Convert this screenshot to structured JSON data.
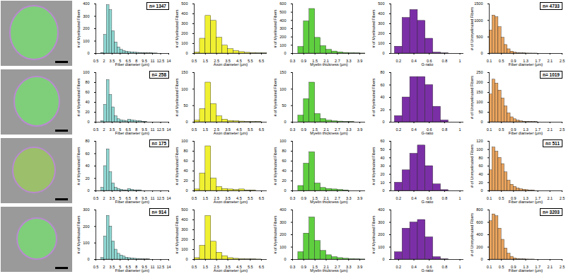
{
  "chart_data": [
    {
      "type": "histogram",
      "x_label": "Fiber diameter (µm)",
      "y_label": "# of Myelinated Fibers",
      "color": "#8fd8d3",
      "annotation": "n= 1347",
      "bins": [
        0.5,
        1,
        1.5,
        2,
        2.5,
        3,
        3.5,
        4,
        4.5,
        5,
        5.5,
        6,
        6.5,
        7,
        7.5,
        8,
        8.5,
        9,
        9.5,
        10,
        10.5,
        11,
        11.5,
        12,
        12.5,
        13,
        13.5,
        14
      ],
      "values": [
        0,
        0,
        5,
        150,
        390,
        350,
        180,
        90,
        50,
        30,
        20,
        15,
        12,
        10,
        8,
        6,
        5,
        4,
        3,
        2,
        2,
        1,
        1,
        0,
        0,
        0,
        0
      ],
      "xlim": [
        0.5,
        14
      ],
      "xticks": [
        0.5,
        2,
        3.5,
        5,
        6.5,
        8,
        9.5,
        11,
        12.5,
        14
      ],
      "ylim": [
        0,
        400
      ],
      "yticks": [
        0,
        100,
        200,
        300,
        400
      ]
    },
    {
      "type": "histogram",
      "x_label": "Axon diameter (µm)",
      "y_label": "# of Myelinated Fibers",
      "color": "#f0f032",
      "bins": [
        0.5,
        1,
        1.5,
        2,
        2.5,
        3,
        3.5,
        4,
        4.5,
        5,
        5.5,
        6,
        6.5,
        7
      ],
      "values": [
        10,
        150,
        380,
        330,
        160,
        80,
        45,
        25,
        15,
        8,
        5,
        3,
        2
      ],
      "xlim": [
        0.5,
        7
      ],
      "xticks": [
        0.5,
        1.5,
        2.5,
        3.5,
        4.5,
        5.5,
        6.5
      ],
      "ylim": [
        0,
        500
      ],
      "yticks": [
        0,
        100,
        200,
        300,
        400,
        500
      ]
    },
    {
      "type": "histogram",
      "x_label": "Myelin thickness (µm)",
      "y_label": "# of Myelinated Fibers",
      "color": "#5fcf3f",
      "bins": [
        0.3,
        0.6,
        0.9,
        1.2,
        1.5,
        1.8,
        2.1,
        2.4,
        2.7,
        3.0,
        3.3,
        3.6,
        3.9,
        4.2
      ],
      "values": [
        0,
        80,
        390,
        540,
        190,
        90,
        45,
        25,
        15,
        8,
        5,
        3,
        1
      ],
      "xlim": [
        0.3,
        4.2
      ],
      "xticks": [
        0.3,
        0.9,
        1.5,
        2.1,
        2.7,
        3.3,
        3.9
      ],
      "ylim": [
        0,
        600
      ],
      "yticks": [
        0,
        100,
        200,
        300,
        400,
        500,
        600
      ]
    },
    {
      "type": "histogram",
      "x_label": "G-ratio",
      "y_label": "# of Myelinated Fibers",
      "color": "#7b2fa6",
      "bins": [
        0.15,
        0.25,
        0.35,
        0.45,
        0.55,
        0.65,
        0.75,
        0.85,
        0.95
      ],
      "values": [
        70,
        360,
        440,
        330,
        150,
        10,
        2,
        0
      ],
      "xlim": [
        0.1,
        1.05
      ],
      "xticks": [
        0.2,
        0.4,
        0.6,
        0.8,
        1
      ],
      "ylim": [
        0,
        500
      ],
      "yticks": [
        0,
        100,
        200,
        300,
        400,
        500
      ]
    },
    {
      "type": "histogram",
      "x_label": "Fiber diameter (µm)",
      "y_label": "# of Unmyelinated Fibers",
      "color": "#e9a35c",
      "annotation": "n= 4733",
      "bins": [
        0.1,
        0.2,
        0.3,
        0.4,
        0.5,
        0.6,
        0.7,
        0.8,
        0.9,
        1.0,
        1.1,
        1.2,
        1.3,
        1.4,
        1.5,
        1.6,
        1.7,
        1.8,
        1.9,
        2.0,
        2.1,
        2.2,
        2.3,
        2.4,
        2.5
      ],
      "values": [
        700,
        1150,
        1100,
        800,
        480,
        260,
        130,
        60,
        30,
        15,
        8,
        5,
        3,
        2,
        1,
        1,
        0,
        0,
        0,
        0,
        0,
        0,
        0,
        0
      ],
      "xlim": [
        0.1,
        2.5
      ],
      "xticks": [
        0.1,
        0.5,
        0.9,
        1.3,
        1.7,
        2.1,
        2.5
      ],
      "ylim": [
        0,
        1500
      ],
      "yticks": [
        0,
        500,
        1000,
        1500
      ]
    },
    {
      "type": "histogram",
      "x_label": "Fiber diameter (µm)",
      "y_label": "# of Myelinated Fibers",
      "color": "#8fd8d3",
      "annotation": "n= 258",
      "bins": [
        0.5,
        1,
        1.5,
        2,
        2.5,
        3,
        3.5,
        4,
        4.5,
        5,
        5.5,
        6,
        6.5,
        7,
        7.5,
        8,
        8.5,
        9,
        9.5,
        10,
        10.5,
        11,
        11.5,
        12,
        12.5,
        13,
        13.5,
        14
      ],
      "values": [
        0,
        0,
        2,
        35,
        85,
        55,
        30,
        12,
        6,
        4,
        3,
        2,
        5,
        4,
        3,
        2,
        2,
        1,
        1,
        0,
        0,
        0,
        0,
        0,
        0,
        0,
        0
      ],
      "xlim": [
        0.5,
        14
      ],
      "xticks": [
        0.5,
        2,
        3.5,
        5,
        6.5,
        8,
        9.5,
        11,
        12.5,
        14
      ],
      "ylim": [
        0,
        100
      ],
      "yticks": [
        0,
        20,
        40,
        60,
        80,
        100
      ]
    },
    {
      "type": "histogram",
      "x_label": "Axon diameter (µm)",
      "y_label": "# of Myelinated Fibers",
      "color": "#f0f032",
      "bins": [
        0.5,
        1,
        1.5,
        2,
        2.5,
        3,
        3.5,
        4,
        4.5,
        5,
        5.5,
        6,
        6.5,
        7
      ],
      "values": [
        5,
        40,
        120,
        55,
        18,
        8,
        4,
        3,
        2,
        1,
        1,
        1,
        0
      ],
      "xlim": [
        0.5,
        7
      ],
      "xticks": [
        0.5,
        1.5,
        2.5,
        3.5,
        4.5,
        5.5,
        6.5
      ],
      "ylim": [
        0,
        150
      ],
      "yticks": [
        0,
        50,
        100,
        150
      ]
    },
    {
      "type": "histogram",
      "x_label": "Myelin thickness (µm)",
      "y_label": "# of Myelinated Fibers",
      "color": "#5fcf3f",
      "bins": [
        0.3,
        0.6,
        0.9,
        1.2,
        1.5,
        1.8,
        2.1,
        2.4,
        2.7,
        3.0,
        3.3,
        3.6,
        3.9,
        4.2
      ],
      "values": [
        0,
        20,
        70,
        120,
        25,
        10,
        5,
        3,
        2,
        1,
        1,
        0,
        0
      ],
      "xlim": [
        0.3,
        4.2
      ],
      "xticks": [
        0.3,
        0.9,
        1.5,
        2.1,
        2.7,
        3.3,
        3.9
      ],
      "ylim": [
        0,
        150
      ],
      "yticks": [
        0,
        50,
        100,
        150
      ]
    },
    {
      "type": "histogram",
      "x_label": "G-ratio",
      "y_label": "# of Myelinated Fibers",
      "color": "#7b2fa6",
      "bins": [
        0.15,
        0.25,
        0.35,
        0.45,
        0.55,
        0.65,
        0.75,
        0.85,
        0.95
      ],
      "values": [
        10,
        40,
        73,
        73,
        60,
        25,
        3,
        0
      ],
      "xlim": [
        0.1,
        1.05
      ],
      "xticks": [
        0.2,
        0.4,
        0.6,
        0.8,
        1
      ],
      "ylim": [
        0,
        80
      ],
      "yticks": [
        0,
        20,
        40,
        60,
        80
      ]
    },
    {
      "type": "histogram",
      "x_label": "Fiber diameter (µm)",
      "y_label": "# of Unmyelinated Fibers",
      "color": "#e9a35c",
      "annotation": "n= 1019",
      "bins": [
        0.1,
        0.2,
        0.3,
        0.4,
        0.5,
        0.6,
        0.7,
        0.8,
        0.9,
        1.0,
        1.1,
        1.2,
        1.3,
        1.4,
        1.5,
        1.6,
        1.7,
        1.8,
        1.9,
        2.0,
        2.1,
        2.2,
        2.3,
        2.4,
        2.5
      ],
      "values": [
        140,
        215,
        195,
        160,
        120,
        80,
        45,
        25,
        15,
        8,
        5,
        3,
        2,
        2,
        1,
        1,
        0,
        0,
        0,
        0,
        0,
        0,
        0,
        0
      ],
      "xlim": [
        0.1,
        2.5
      ],
      "xticks": [
        0.1,
        0.5,
        0.9,
        1.3,
        1.7,
        2.1,
        2.5
      ],
      "ylim": [
        0,
        250
      ],
      "yticks": [
        0,
        50,
        100,
        150,
        200,
        250
      ]
    },
    {
      "type": "histogram",
      "x_label": "Fiber diameter (µm)",
      "y_label": "# of Myelinated Fibers",
      "color": "#8fd8d3",
      "annotation": "n= 175",
      "bins": [
        0.5,
        1,
        1.5,
        2,
        2.5,
        3,
        3.5,
        4,
        4.5,
        5,
        5.5,
        6,
        6.5,
        7,
        7.5,
        8,
        8.5,
        9,
        9.5,
        10,
        10.5,
        11,
        11.5,
        12,
        12.5,
        13,
        13.5,
        14
      ],
      "values": [
        0,
        0,
        5,
        40,
        67,
        30,
        12,
        5,
        3,
        2,
        1,
        1,
        3,
        2,
        1,
        1,
        1,
        0,
        0,
        0,
        0,
        0,
        0,
        0,
        0,
        0,
        0
      ],
      "xlim": [
        0.5,
        14
      ],
      "xticks": [
        0.5,
        2,
        3.5,
        5,
        6.5,
        8,
        9.5,
        11,
        12.5,
        14
      ],
      "ylim": [
        0,
        80
      ],
      "yticks": [
        0,
        20,
        40,
        60,
        80
      ]
    },
    {
      "type": "histogram",
      "x_label": "Axon diameter (µm)",
      "y_label": "# of Myelinated Fibers",
      "color": "#f0f032",
      "bins": [
        0.5,
        1,
        1.5,
        2,
        2.5,
        3,
        3.5,
        4,
        4.5,
        5,
        5.5,
        6,
        6.5,
        7
      ],
      "values": [
        3,
        35,
        90,
        25,
        8,
        4,
        3,
        2,
        3,
        1,
        1,
        0,
        0
      ],
      "xlim": [
        0.5,
        7
      ],
      "xticks": [
        0.5,
        1.5,
        2.5,
        3.5,
        4.5,
        5.5,
        6.5
      ],
      "ylim": [
        0,
        100
      ],
      "yticks": [
        0,
        20,
        40,
        60,
        80,
        100
      ]
    },
    {
      "type": "histogram",
      "x_label": "Myelin thickness (µm)",
      "y_label": "# of Myelinated Fibers",
      "color": "#5fcf3f",
      "bins": [
        0.3,
        0.6,
        0.9,
        1.2,
        1.5,
        1.8,
        2.1,
        2.4,
        2.7,
        3.0,
        3.3,
        3.6,
        3.9,
        4.2
      ],
      "values": [
        0,
        10,
        55,
        78,
        15,
        6,
        4,
        3,
        2,
        1,
        0,
        0,
        0
      ],
      "xlim": [
        0.3,
        4.2
      ],
      "xticks": [
        0.3,
        0.9,
        1.5,
        2.1,
        2.7,
        3.3,
        3.9
      ],
      "ylim": [
        0,
        100
      ],
      "yticks": [
        0,
        20,
        40,
        60,
        80,
        100
      ]
    },
    {
      "type": "histogram",
      "x_label": "G-ratio",
      "y_label": "# of Myelinated Fibers",
      "color": "#7b2fa6",
      "bins": [
        0.15,
        0.25,
        0.35,
        0.45,
        0.55,
        0.65,
        0.75,
        0.85,
        0.95
      ],
      "values": [
        10,
        25,
        45,
        55,
        30,
        8,
        1,
        0
      ],
      "xlim": [
        0.1,
        1.05
      ],
      "xticks": [
        0.2,
        0.4,
        0.6,
        0.8,
        1
      ],
      "ylim": [
        0,
        60
      ],
      "yticks": [
        0,
        10,
        20,
        30,
        40,
        50,
        60
      ]
    },
    {
      "type": "histogram",
      "x_label": "Fiber diameter (µm)",
      "y_label": "# of Unmyelinated Fibers",
      "color": "#e9a35c",
      "annotation": "n= 511",
      "bins": [
        0.1,
        0.2,
        0.3,
        0.4,
        0.5,
        0.6,
        0.7,
        0.8,
        0.9,
        1.0,
        1.1,
        1.2,
        1.3,
        1.4,
        1.5,
        1.6,
        1.7,
        1.8,
        1.9,
        2.0,
        2.1,
        2.2,
        2.3,
        2.4,
        2.5
      ],
      "values": [
        50,
        105,
        95,
        80,
        65,
        45,
        25,
        15,
        10,
        6,
        4,
        3,
        2,
        1,
        1,
        0,
        0,
        0,
        0,
        0,
        0,
        0,
        0,
        0
      ],
      "xlim": [
        0.1,
        2.5
      ],
      "xticks": [
        0.1,
        0.5,
        0.9,
        1.3,
        1.7,
        2.1,
        2.5
      ],
      "ylim": [
        0,
        120
      ],
      "yticks": [
        0,
        20,
        40,
        60,
        80,
        100,
        120
      ]
    },
    {
      "type": "histogram",
      "x_label": "Fiber diameter (µm)",
      "y_label": "# of Myelinated Fibers",
      "color": "#8fd8d3",
      "annotation": "n= 914",
      "bins": [
        0.5,
        1,
        1.5,
        2,
        2.5,
        3,
        3.5,
        4,
        4.5,
        5,
        5.5,
        6,
        6.5,
        7,
        7.5,
        8,
        8.5,
        9,
        9.5,
        10,
        10.5,
        11,
        11.5,
        12,
        12.5,
        13,
        13.5,
        14
      ],
      "values": [
        0,
        0,
        10,
        140,
        265,
        200,
        110,
        60,
        35,
        25,
        18,
        12,
        9,
        7,
        5,
        4,
        3,
        2,
        1,
        1,
        0,
        0,
        0,
        0,
        0,
        0,
        0
      ],
      "xlim": [
        0.5,
        14
      ],
      "xticks": [
        0.5,
        2,
        3.5,
        5,
        6.5,
        8,
        9.5,
        11,
        12.5,
        14
      ],
      "ylim": [
        0,
        300
      ],
      "yticks": [
        0,
        100,
        200,
        300
      ]
    },
    {
      "type": "histogram",
      "x_label": "Axon diameter (µm)",
      "y_label": "# of Myelinated Fibers",
      "color": "#f0f032",
      "bins": [
        0.5,
        1,
        1.5,
        2,
        2.5,
        3,
        3.5,
        4,
        4.5,
        5,
        5.5,
        6,
        6.5,
        7
      ],
      "values": [
        15,
        140,
        440,
        180,
        70,
        35,
        15,
        8,
        5,
        3,
        2,
        1,
        0
      ],
      "xlim": [
        0.5,
        7
      ],
      "xticks": [
        0.5,
        1.5,
        2.5,
        3.5,
        4.5,
        5.5,
        6.5
      ],
      "ylim": [
        0,
        500
      ],
      "yticks": [
        0,
        100,
        200,
        300,
        400,
        500
      ]
    },
    {
      "type": "histogram",
      "x_label": "Myelin thickness (µm)",
      "y_label": "# of Myelinated Fibers",
      "color": "#5fcf3f",
      "bins": [
        0.3,
        0.6,
        0.9,
        1.2,
        1.5,
        1.8,
        2.1,
        2.4,
        2.7,
        3.0,
        3.3,
        3.6,
        3.9,
        4.2
      ],
      "values": [
        0,
        60,
        210,
        340,
        150,
        70,
        35,
        20,
        12,
        7,
        4,
        2,
        1
      ],
      "xlim": [
        0.3,
        4.2
      ],
      "xticks": [
        0.3,
        0.9,
        1.5,
        2.1,
        2.7,
        3.3,
        3.9
      ],
      "ylim": [
        0,
        400
      ],
      "yticks": [
        0,
        100,
        200,
        300,
        400
      ]
    },
    {
      "type": "histogram",
      "x_label": "G-ratio",
      "y_label": "# of Myelinated Fibers",
      "color": "#7b2fa6",
      "bins": [
        0.15,
        0.25,
        0.35,
        0.45,
        0.55,
        0.65,
        0.75,
        0.85,
        0.95
      ],
      "values": [
        60,
        250,
        300,
        320,
        180,
        20,
        3,
        0
      ],
      "xlim": [
        0.1,
        1.05
      ],
      "xticks": [
        0.2,
        0.4,
        0.6,
        0.8,
        1
      ],
      "ylim": [
        0,
        400
      ],
      "yticks": [
        0,
        100,
        200,
        300,
        400
      ]
    },
    {
      "type": "histogram",
      "x_label": "Fiber diameter (µm)",
      "y_label": "# of Unmyelinated Fibers",
      "color": "#e9a35c",
      "annotation": "n= 3203",
      "bins": [
        0.1,
        0.2,
        0.3,
        0.4,
        0.5,
        0.6,
        0.7,
        0.8,
        0.9,
        1.0,
        1.1,
        1.2,
        1.3,
        1.4,
        1.5,
        1.6,
        1.7,
        1.8,
        1.9,
        2.0,
        2.1,
        2.2,
        2.3,
        2.4,
        2.5
      ],
      "values": [
        620,
        730,
        700,
        500,
        320,
        180,
        95,
        45,
        20,
        10,
        6,
        4,
        2,
        1,
        1,
        0,
        0,
        0,
        0,
        0,
        0,
        0,
        0,
        0
      ],
      "xlim": [
        0.1,
        2.5
      ],
      "xticks": [
        0.1,
        0.5,
        0.9,
        1.3,
        1.7,
        2.1,
        2.5
      ],
      "ylim": [
        0,
        800
      ],
      "yticks": [
        0,
        200,
        400,
        600,
        800
      ]
    }
  ]
}
